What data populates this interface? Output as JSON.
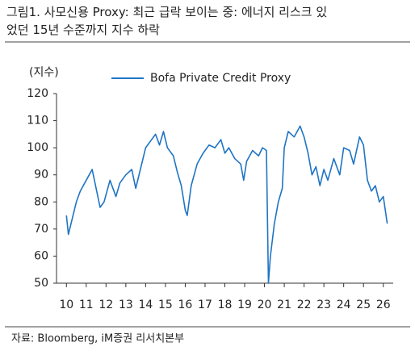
{
  "chart_data": {
    "type": "line",
    "title": "그림1. 사모신용 Proxy: 최근 급락 보이는 중: 에너지 리스크 있었던 15년 수준까지 지수 하락",
    "y_label": "(지수)",
    "source": "자료: Bloomberg, iM증권 리서치본부",
    "legend": "upper-center",
    "grid": false,
    "x": [
      10.0,
      10.1,
      10.3,
      10.5,
      10.7,
      11.0,
      11.3,
      11.5,
      11.7,
      11.9,
      12.2,
      12.5,
      12.7,
      13.0,
      13.3,
      13.5,
      13.8,
      14.0,
      14.3,
      14.5,
      14.7,
      14.9,
      15.1,
      15.4,
      15.6,
      15.8,
      16.0,
      16.1,
      16.3,
      16.6,
      16.9,
      17.2,
      17.5,
      17.8,
      18.0,
      18.2,
      18.5,
      18.8,
      18.95,
      19.1,
      19.4,
      19.7,
      19.9,
      20.1,
      20.2,
      20.3,
      20.5,
      20.7,
      20.9,
      21.0,
      21.2,
      21.5,
      21.8,
      22.0,
      22.2,
      22.4,
      22.6,
      22.8,
      23.0,
      23.2,
      23.5,
      23.8,
      24.0,
      24.3,
      24.5,
      24.8,
      25.0,
      25.2,
      25.4,
      25.6,
      25.8,
      26.0,
      26.2
    ],
    "series": [
      {
        "name": "Bofa Private Credit Proxy",
        "color": "#1f74c4",
        "values": [
          75,
          68,
          74,
          80,
          84,
          88,
          92,
          85,
          78,
          80,
          88,
          82,
          87,
          90,
          92,
          85,
          94,
          100,
          103,
          105,
          101,
          106,
          100,
          97,
          91,
          86,
          77,
          75,
          86,
          94,
          98,
          101,
          100,
          103,
          98,
          100,
          96,
          94,
          88,
          95,
          99,
          97,
          100,
          99,
          50,
          60,
          72,
          80,
          85,
          100,
          106,
          104,
          108,
          104,
          98,
          90,
          93,
          86,
          92,
          88,
          96,
          90,
          100,
          99,
          94,
          104,
          101,
          88,
          84,
          86,
          80,
          82,
          72
        ]
      }
    ],
    "xlim": [
      9.5,
      26.5
    ],
    "xticks": [
      10,
      11,
      12,
      13,
      14,
      15,
      16,
      17,
      18,
      19,
      20,
      21,
      22,
      23,
      24,
      25,
      26
    ],
    "ylim": [
      50,
      120
    ],
    "yticks": [
      50,
      60,
      70,
      80,
      90,
      100,
      110,
      120
    ]
  }
}
